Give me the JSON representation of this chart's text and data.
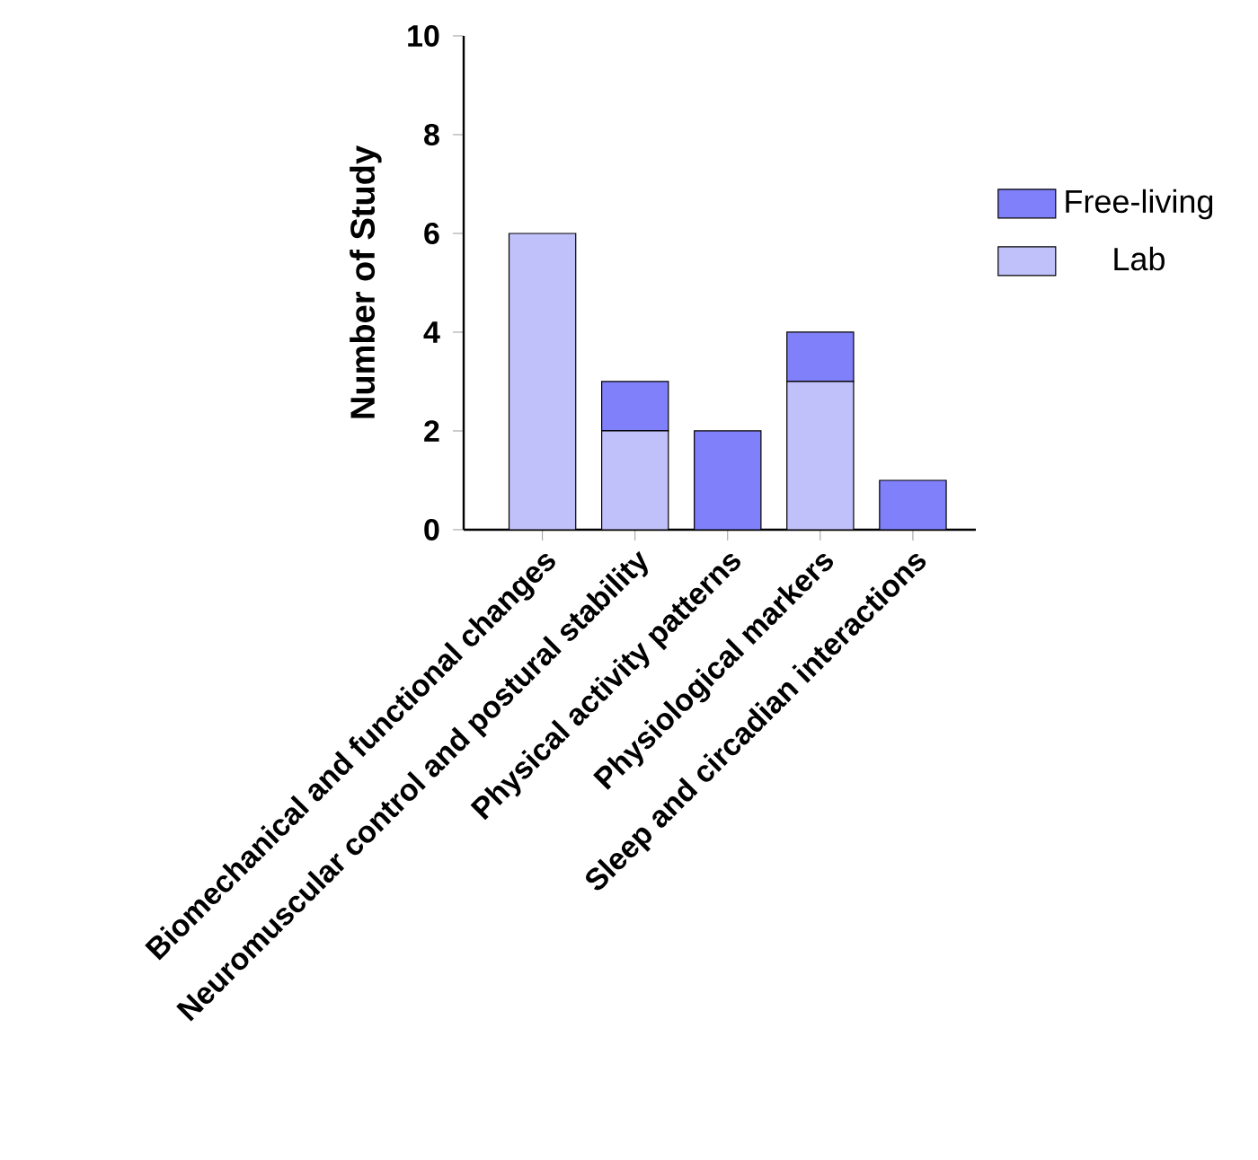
{
  "chart_data": {
    "type": "bar",
    "stacked": true,
    "ylabel": "Number of Study",
    "categories": [
      "Biomechanical and functional changes",
      "Neuromuscular control and postural stability",
      "Physical activity patterns",
      "Physiological markers",
      "Sleep and circadian interactions"
    ],
    "series": [
      {
        "name": "Lab",
        "color": "#c0c0fa",
        "values": [
          6,
          2,
          0,
          3,
          0
        ]
      },
      {
        "name": "Free-living",
        "color": "#8080fa",
        "values": [
          0,
          1,
          2,
          1,
          1
        ]
      }
    ],
    "ylim": [
      0,
      10
    ],
    "yticks": [
      0,
      2,
      4,
      6,
      8,
      10
    ],
    "grid": false,
    "legend": "right"
  }
}
